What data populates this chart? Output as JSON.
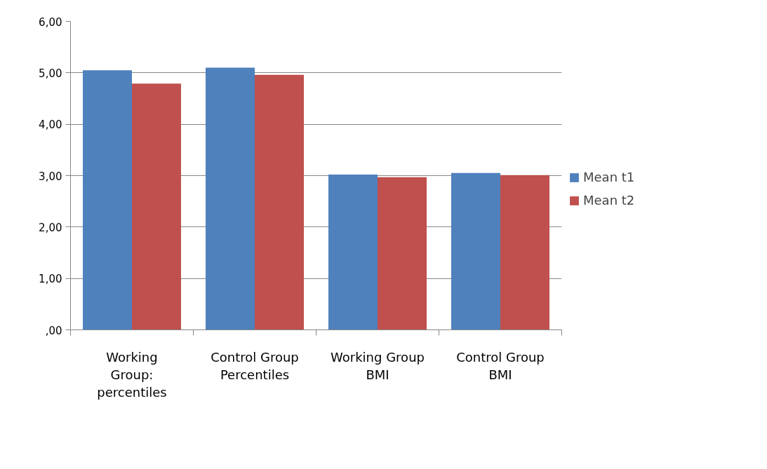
{
  "chart_data": {
    "type": "bar",
    "categories": [
      "Working Group: percentiles",
      "Control Group Percentiles",
      "Working Group BMI",
      "Control Group BMI"
    ],
    "series": [
      {
        "name": "Mean t1",
        "color": "#4f81bd",
        "values": [
          5.05,
          5.1,
          3.02,
          3.05
        ]
      },
      {
        "name": "Mean t2",
        "color": "#c0504d",
        "values": [
          4.79,
          4.96,
          2.97,
          3.01
        ]
      }
    ],
    "ylim": [
      0,
      6
    ],
    "yticks": [
      {
        "value": 0,
        "label": ",00"
      },
      {
        "value": 1,
        "label": "1,00"
      },
      {
        "value": 2,
        "label": "2,00"
      },
      {
        "value": 3,
        "label": "3,00"
      },
      {
        "value": 4,
        "label": "4,00"
      },
      {
        "value": 5,
        "label": "5,00"
      },
      {
        "value": 6,
        "label": "6,00"
      }
    ],
    "grid": "y",
    "legend": "right"
  }
}
